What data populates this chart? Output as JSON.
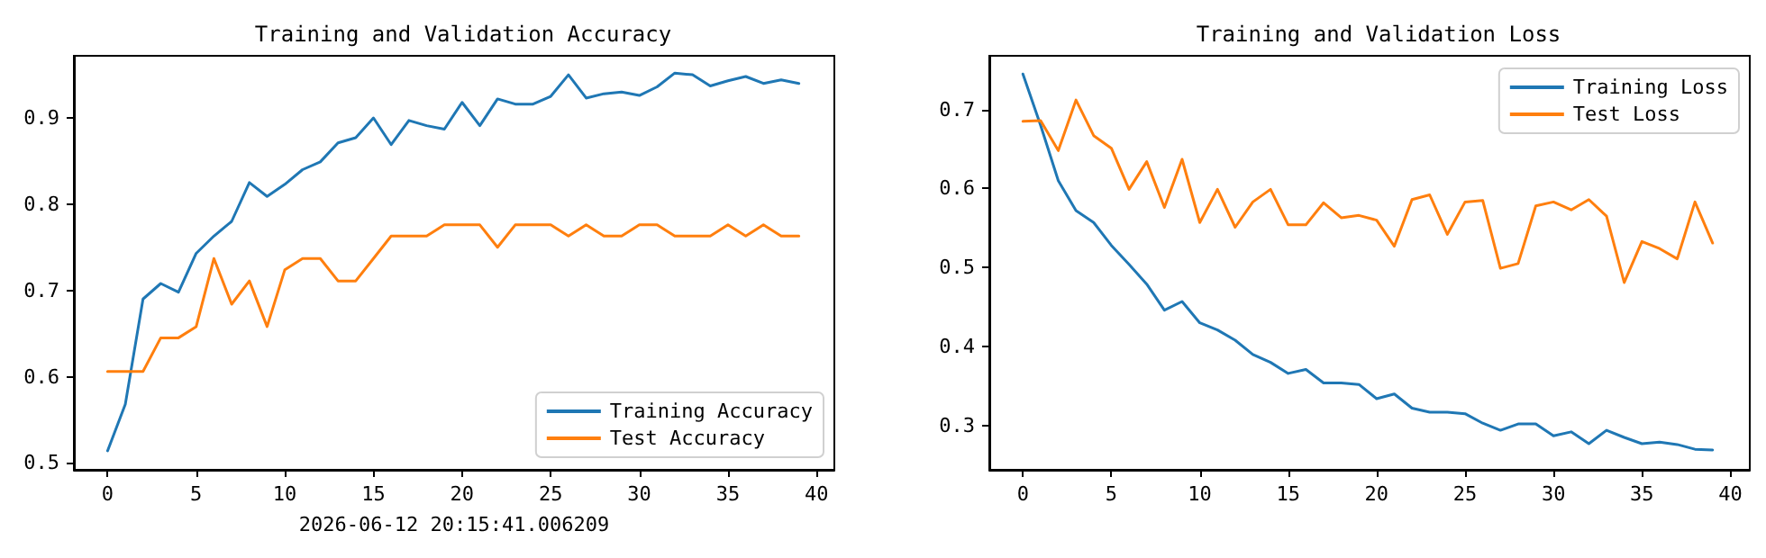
{
  "chart_data": [
    {
      "type": "line",
      "title": "Training and Validation Accuracy",
      "xlabel": "2026-06-12 20:15:41.006209",
      "x": [
        0,
        1,
        2,
        3,
        4,
        5,
        6,
        7,
        8,
        9,
        10,
        11,
        12,
        13,
        14,
        15,
        16,
        17,
        18,
        19,
        20,
        21,
        22,
        23,
        24,
        25,
        26,
        27,
        28,
        29,
        30,
        31,
        32,
        33,
        34,
        35,
        36,
        37,
        38,
        39
      ],
      "series": [
        {
          "name": "Training Accuracy",
          "color": "#1f77b4",
          "values": [
            0.514,
            0.568,
            0.69,
            0.708,
            0.698,
            0.743,
            0.763,
            0.78,
            0.825,
            0.809,
            0.823,
            0.84,
            0.849,
            0.871,
            0.877,
            0.9,
            0.869,
            0.897,
            0.891,
            0.887,
            0.918,
            0.891,
            0.922,
            0.916,
            0.916,
            0.925,
            0.95,
            0.923,
            0.928,
            0.93,
            0.926,
            0.936,
            0.952,
            0.95,
            0.937,
            0.943,
            0.948,
            0.94,
            0.944,
            0.94
          ]
        },
        {
          "name": "Test Accuracy",
          "color": "#ff7f0e",
          "values": [
            0.606,
            0.606,
            0.606,
            0.645,
            0.645,
            0.658,
            0.737,
            0.684,
            0.711,
            0.658,
            0.724,
            0.737,
            0.737,
            0.711,
            0.711,
            0.737,
            0.763,
            0.763,
            0.763,
            0.776,
            0.776,
            0.776,
            0.75,
            0.776,
            0.776,
            0.776,
            0.763,
            0.776,
            0.763,
            0.763,
            0.776,
            0.776,
            0.763,
            0.763,
            0.763,
            0.776,
            0.763,
            0.776,
            0.763,
            0.763
          ]
        }
      ],
      "xlim": [
        -1.9,
        41
      ],
      "xticks": [
        0,
        5,
        10,
        15,
        20,
        25,
        30,
        35,
        40
      ],
      "ylim": [
        0.492,
        0.972
      ],
      "yticks": [
        0.5,
        0.6,
        0.7,
        0.8,
        0.9
      ],
      "grid": false,
      "legend": "bottom right",
      "marker": "none",
      "line_style": "solid"
    },
    {
      "type": "line",
      "title": "Training and Validation Loss",
      "x": [
        0,
        1,
        2,
        3,
        4,
        5,
        6,
        7,
        8,
        9,
        10,
        11,
        12,
        13,
        14,
        15,
        16,
        17,
        18,
        19,
        20,
        21,
        22,
        23,
        24,
        25,
        26,
        27,
        28,
        29,
        30,
        31,
        32,
        33,
        34,
        35,
        36,
        37,
        38,
        39
      ],
      "series": [
        {
          "name": "Training Loss",
          "color": "#1f77b4",
          "values": [
            0.745,
            0.68,
            0.61,
            0.572,
            0.557,
            0.528,
            0.504,
            0.479,
            0.446,
            0.457,
            0.43,
            0.421,
            0.408,
            0.39,
            0.38,
            0.366,
            0.371,
            0.354,
            0.354,
            0.352,
            0.334,
            0.34,
            0.322,
            0.317,
            0.317,
            0.315,
            0.303,
            0.294,
            0.302,
            0.302,
            0.287,
            0.292,
            0.277,
            0.294,
            0.285,
            0.277,
            0.279,
            0.276,
            0.27,
            0.269
          ]
        },
        {
          "name": "Test Loss",
          "color": "#ff7f0e",
          "values": [
            0.685,
            0.686,
            0.648,
            0.712,
            0.667,
            0.651,
            0.599,
            0.634,
            0.576,
            0.637,
            0.557,
            0.599,
            0.551,
            0.583,
            0.599,
            0.554,
            0.554,
            0.582,
            0.563,
            0.566,
            0.56,
            0.527,
            0.586,
            0.592,
            0.542,
            0.583,
            0.585,
            0.499,
            0.505,
            0.578,
            0.583,
            0.573,
            0.586,
            0.565,
            0.481,
            0.533,
            0.524,
            0.511,
            0.583,
            0.531
          ]
        }
      ],
      "xlim": [
        -1.9,
        41.1
      ],
      "xticks": [
        0,
        5,
        10,
        15,
        20,
        25,
        30,
        35,
        40
      ],
      "ylim": [
        0.244,
        0.768
      ],
      "yticks": [
        0.3,
        0.4,
        0.5,
        0.6,
        0.7
      ],
      "grid": false,
      "legend": "top right",
      "marker": "none",
      "line_style": "solid"
    }
  ]
}
